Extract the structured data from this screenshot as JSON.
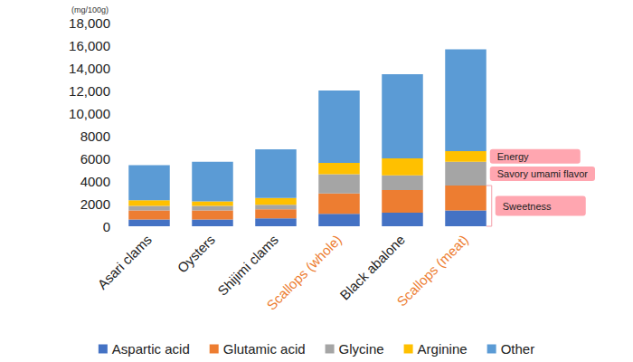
{
  "chart_data": {
    "type": "bar",
    "stacked": true,
    "ylabel": "(mg/100g)",
    "categories": [
      "Asari clams",
      "Oysters",
      "Shijimi clams",
      "Scallops (whole)",
      "Black abalone",
      "Scallops (meat)"
    ],
    "series": [
      {
        "name": "Aspartic acid",
        "color": "#4472c4",
        "values": [
          600,
          600,
          700,
          1100,
          1200,
          1400
        ]
      },
      {
        "name": "Glutamic acid",
        "color": "#ed7d31",
        "values": [
          800,
          800,
          800,
          1800,
          2000,
          2200
        ]
      },
      {
        "name": "Glycine",
        "color": "#a5a5a5",
        "values": [
          400,
          400,
          400,
          1700,
          1300,
          2100
        ]
      },
      {
        "name": "Arginine",
        "color": "#ffc000",
        "values": [
          500,
          400,
          600,
          1000,
          1500,
          950
        ]
      },
      {
        "name": "Other",
        "color": "#5b9bd5",
        "values": [
          3100,
          3500,
          4300,
          6400,
          7450,
          9000
        ]
      }
    ],
    "ylim": [
      0,
      18000
    ],
    "yticks": [
      0,
      2000,
      4000,
      6000,
      8000,
      {
        "value": 10000,
        "label": "10,000"
      },
      {
        "value": 12000,
        "label": "12,000"
      },
      {
        "value": 14000,
        "label": "14,000"
      },
      {
        "value": 16000,
        "label": "16,000"
      },
      {
        "value": 18000,
        "label": "18,000"
      }
    ],
    "grid": false,
    "legend": "bottom",
    "annotations": [
      {
        "text": "Energy",
        "series": [
          "Arginine"
        ]
      },
      {
        "text": "Savory umami flavor",
        "series": [
          "Glycine"
        ]
      },
      {
        "text": "Sweetness",
        "series": [
          "Aspartic acid",
          "Glutamic acid"
        ]
      }
    ]
  }
}
